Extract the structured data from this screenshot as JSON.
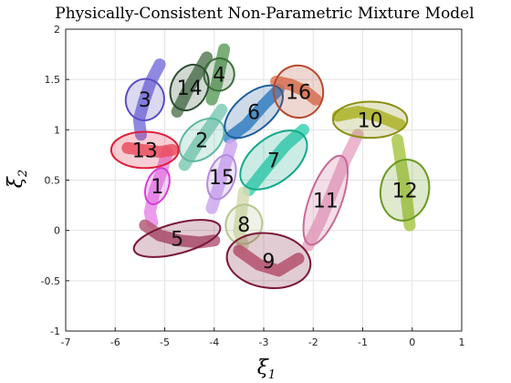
{
  "chart_data": {
    "type": "scatter",
    "title": "Physically-Consistent Non-Parametric Mixture Model",
    "xlabel": {
      "symbol": "ξ",
      "sub": "1"
    },
    "ylabel": {
      "symbol": "ξ",
      "sub": "2"
    },
    "xlim": [
      -7,
      1
    ],
    "ylim": [
      -1,
      2
    ],
    "xticks": [
      -7,
      -6,
      -5,
      -4,
      -3,
      -2,
      -1,
      0,
      1
    ],
    "yticks": [
      -1,
      -0.5,
      0,
      0.5,
      1,
      1.5,
      2
    ],
    "xtick_labels": [
      "-7",
      "-6",
      "-5",
      "-4",
      "-3",
      "-2",
      "-1",
      "0",
      "1"
    ],
    "ytick_labels": [
      "-1",
      "-0.5",
      "0",
      "0.5",
      "1",
      "1.5",
      "2"
    ],
    "grid": true,
    "clusters": [
      {
        "label": "1",
        "color": "#d63fd6",
        "center": [
          -5.15,
          0.44
        ],
        "axes": [
          0.38,
          0.11
        ],
        "angle": 70
      },
      {
        "label": "2",
        "color": "#5cb8a0",
        "center": [
          -4.25,
          0.9
        ],
        "axes": [
          0.52,
          0.17
        ],
        "angle": 42
      },
      {
        "label": "3",
        "color": "#5a4fc4",
        "center": [
          -5.4,
          1.3
        ],
        "axes": [
          0.42,
          0.19
        ],
        "angle": 78
      },
      {
        "label": "4",
        "color": "#3c6e3c",
        "center": [
          -3.9,
          1.55
        ],
        "axes": [
          0.33,
          0.15
        ],
        "angle": 82
      },
      {
        "label": "5",
        "color": "#7a1836",
        "center": [
          -4.75,
          -0.08
        ],
        "axes": [
          0.9,
          0.15
        ],
        "angle": 15
      },
      {
        "label": "6",
        "color": "#1d5d9c",
        "center": [
          -3.2,
          1.18
        ],
        "axes": [
          0.7,
          0.18
        ],
        "angle": 40
      },
      {
        "label": "7",
        "color": "#12a88a",
        "center": [
          -2.8,
          0.7
        ],
        "axes": [
          0.78,
          0.22
        ],
        "angle": 38
      },
      {
        "label": "8",
        "color": "#b7c68c",
        "center": [
          -3.4,
          0.06
        ],
        "axes": [
          0.4,
          0.18
        ],
        "angle": 74
      },
      {
        "label": "9",
        "color": "#7a1836",
        "center": [
          -2.9,
          -0.3
        ],
        "axes": [
          0.85,
          0.27
        ],
        "angle": -8
      },
      {
        "label": "10",
        "color": "#8a8f10",
        "center": [
          -0.85,
          1.1
        ],
        "axes": [
          0.75,
          0.18
        ],
        "angle": 0
      },
      {
        "label": "11",
        "color": "#c86a96",
        "center": [
          -1.75,
          0.3
        ],
        "axes": [
          0.95,
          0.16
        ],
        "angle": 70
      },
      {
        "label": "12",
        "color": "#6a9a20",
        "center": [
          -0.15,
          0.4
        ],
        "axes": [
          0.62,
          0.24
        ],
        "angle": 80
      },
      {
        "label": "13",
        "color": "#e01e3a",
        "center": [
          -5.4,
          0.8
        ],
        "axes": [
          0.68,
          0.18
        ],
        "angle": 0
      },
      {
        "label": "14",
        "color": "#2e4d30",
        "center": [
          -4.5,
          1.42
        ],
        "axes": [
          0.48,
          0.18
        ],
        "angle": 65
      },
      {
        "label": "15",
        "color": "#b48ae0",
        "center": [
          -3.85,
          0.53
        ],
        "axes": [
          0.46,
          0.13
        ],
        "angle": 72
      },
      {
        "label": "16",
        "color": "#b8482e",
        "center": [
          -2.3,
          1.38
        ],
        "axes": [
          0.5,
          0.26
        ],
        "angle": 12
      }
    ],
    "trajectories": [
      {
        "color": "#e88be8",
        "points": [
          [
            -4.95,
            0.78
          ],
          [
            -5.05,
            0.6
          ],
          [
            -5.2,
            0.4
          ],
          [
            -5.3,
            0.18
          ],
          [
            -5.25,
            0.08
          ]
        ]
      },
      {
        "color": "#80cbb6",
        "points": [
          [
            -3.85,
            1.2
          ],
          [
            -4.1,
            1.02
          ],
          [
            -4.35,
            0.85
          ],
          [
            -4.6,
            0.65
          ]
        ]
      },
      {
        "color": "#7d74dc",
        "points": [
          [
            -5.1,
            1.65
          ],
          [
            -5.28,
            1.48
          ],
          [
            -5.42,
            1.28
          ],
          [
            -5.52,
            1.1
          ],
          [
            -5.48,
            0.95
          ]
        ]
      },
      {
        "color": "#62a062",
        "points": [
          [
            -3.8,
            1.8
          ],
          [
            -3.88,
            1.62
          ],
          [
            -3.95,
            1.45
          ],
          [
            -4.05,
            1.3
          ]
        ]
      },
      {
        "color": "#b45a78",
        "points": [
          [
            -5.4,
            0.05
          ],
          [
            -5.1,
            -0.05
          ],
          [
            -4.7,
            -0.1
          ],
          [
            -4.3,
            -0.12
          ],
          [
            -4.0,
            -0.1
          ]
        ]
      },
      {
        "color": "#3a88cc",
        "points": [
          [
            -2.7,
            1.4
          ],
          [
            -3.0,
            1.25
          ],
          [
            -3.35,
            1.05
          ],
          [
            -3.7,
            0.92
          ]
        ]
      },
      {
        "color": "#3ed1b6",
        "points": [
          [
            -2.2,
            1.0
          ],
          [
            -2.55,
            0.85
          ],
          [
            -2.95,
            0.62
          ],
          [
            -3.3,
            0.4
          ]
        ]
      },
      {
        "color": "#d3dcb0",
        "points": [
          [
            -3.4,
            0.38
          ],
          [
            -3.45,
            0.18
          ],
          [
            -3.5,
            0.0
          ],
          [
            -3.42,
            -0.15
          ]
        ]
      },
      {
        "color": "#c4627e",
        "points": [
          [
            -3.5,
            -0.2
          ],
          [
            -3.1,
            -0.34
          ],
          [
            -2.7,
            -0.4
          ],
          [
            -2.3,
            -0.28
          ]
        ]
      },
      {
        "color": "#b6bd2a",
        "points": [
          [
            -1.5,
            1.14
          ],
          [
            -1.1,
            1.18
          ],
          [
            -0.7,
            1.14
          ],
          [
            -0.25,
            1.05
          ]
        ]
      },
      {
        "color": "#e7a9c6",
        "points": [
          [
            -1.1,
            0.95
          ],
          [
            -1.35,
            0.7
          ],
          [
            -1.6,
            0.4
          ],
          [
            -1.85,
            0.1
          ],
          [
            -2.1,
            -0.15
          ]
        ]
      },
      {
        "color": "#a9c84a",
        "points": [
          [
            -0.3,
            0.9
          ],
          [
            -0.22,
            0.65
          ],
          [
            -0.12,
            0.35
          ],
          [
            -0.05,
            0.05
          ]
        ]
      },
      {
        "color": "#ef5d6a",
        "points": [
          [
            -5.75,
            0.82
          ],
          [
            -5.45,
            0.8
          ],
          [
            -5.1,
            0.78
          ],
          [
            -4.85,
            0.8
          ]
        ]
      },
      {
        "color": "#5b7d5a",
        "points": [
          [
            -4.15,
            1.72
          ],
          [
            -4.35,
            1.55
          ],
          [
            -4.55,
            1.38
          ],
          [
            -4.75,
            1.18
          ]
        ]
      },
      {
        "color": "#cda8f0",
        "points": [
          [
            -3.65,
            0.85
          ],
          [
            -3.78,
            0.65
          ],
          [
            -3.92,
            0.42
          ],
          [
            -4.05,
            0.22
          ]
        ]
      },
      {
        "color": "#de7a5c",
        "points": [
          [
            -2.75,
            1.48
          ],
          [
            -2.45,
            1.45
          ],
          [
            -2.15,
            1.38
          ],
          [
            -1.95,
            1.3
          ]
        ]
      }
    ]
  }
}
